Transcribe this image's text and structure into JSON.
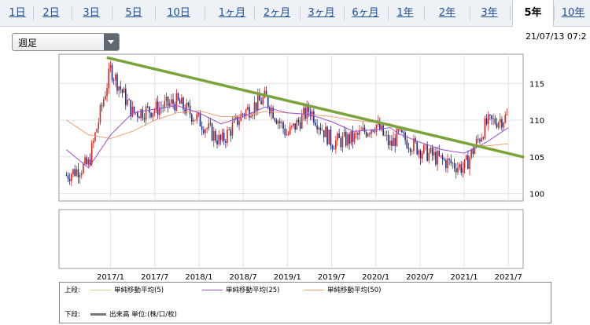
{
  "period_tabs": [
    {
      "label": "1日",
      "active": false
    },
    {
      "label": "2日",
      "active": false
    },
    {
      "label": "3日",
      "active": false
    },
    {
      "label": "5日",
      "active": false
    },
    {
      "label": "10日",
      "active": false
    },
    {
      "label": "1ヶ月",
      "active": false
    },
    {
      "label": "2ヶ月",
      "active": false
    },
    {
      "label": "3ヶ月",
      "active": false
    },
    {
      "label": "6ヶ月",
      "active": false
    },
    {
      "label": "1年",
      "active": false
    },
    {
      "label": "2年",
      "active": false
    },
    {
      "label": "3年",
      "active": false
    },
    {
      "label": "5年",
      "active": true
    },
    {
      "label": "10年",
      "active": false
    }
  ],
  "interval_select": {
    "value": "週足"
  },
  "datetime": "21/07/13 07:2",
  "colors": {
    "link": "#1a4fa0",
    "up_candle": "#d9251c",
    "down_candle": "#1a2f8a",
    "ma5": "#c6d98a",
    "ma25": "#9b4fcf",
    "ma50": "#f0a07a",
    "trendline": "#7aa43a"
  },
  "chart_data": {
    "type": "candlestick",
    "x": [
      "2016/7",
      "2016/10",
      "2017/1",
      "2017/4",
      "2017/7",
      "2017/10",
      "2018/1",
      "2018/4",
      "2018/7",
      "2018/10",
      "2019/1",
      "2019/4",
      "2019/7",
      "2019/10",
      "2020/1",
      "2020/3",
      "2020/4",
      "2020/7",
      "2020/10",
      "2021/1",
      "2021/4",
      "2021/7"
    ],
    "close": [
      102.5,
      104.0,
      117.0,
      111.0,
      111.5,
      112.5,
      110.0,
      107.0,
      111.0,
      113.0,
      108.0,
      111.5,
      107.0,
      107.5,
      109.5,
      106.5,
      108.0,
      106.0,
      104.5,
      103.5,
      109.5,
      110.5
    ],
    "ma25": [
      106.0,
      103.5,
      108.0,
      111.0,
      111.5,
      112.0,
      111.0,
      109.5,
      110.5,
      111.8,
      111.0,
      110.8,
      109.8,
      108.5,
      108.7,
      109.0,
      108.2,
      107.0,
      106.0,
      105.5,
      107.0,
      109.0
    ],
    "ma50": [
      110.0,
      108.0,
      107.5,
      108.5,
      110.0,
      111.0,
      111.3,
      110.5,
      110.5,
      111.2,
      111.0,
      110.8,
      110.5,
      110.0,
      109.7,
      109.5,
      108.8,
      108.3,
      107.5,
      106.8,
      106.5,
      106.8
    ],
    "trendline": {
      "x": [
        "2016/12",
        "2021/9"
      ],
      "y": [
        118.5,
        105.0
      ]
    },
    "y_ticks": [
      100,
      105,
      110,
      115
    ],
    "ylim": [
      99,
      119
    ],
    "x_tick_labels": [
      "2017/1",
      "2017/7",
      "2018/1",
      "2018/7",
      "2019/1",
      "2019/7",
      "2020/1",
      "2020/7",
      "2021/1",
      "2021/7"
    ],
    "legend_upper": {
      "label": "上段:",
      "items": [
        "単純移動平均(5)",
        "単純移動平均(25)",
        "単純移動平均(50)"
      ]
    },
    "legend_lower": {
      "label": "下段:",
      "item": "出来高 単位:(株/口/枚)"
    }
  }
}
